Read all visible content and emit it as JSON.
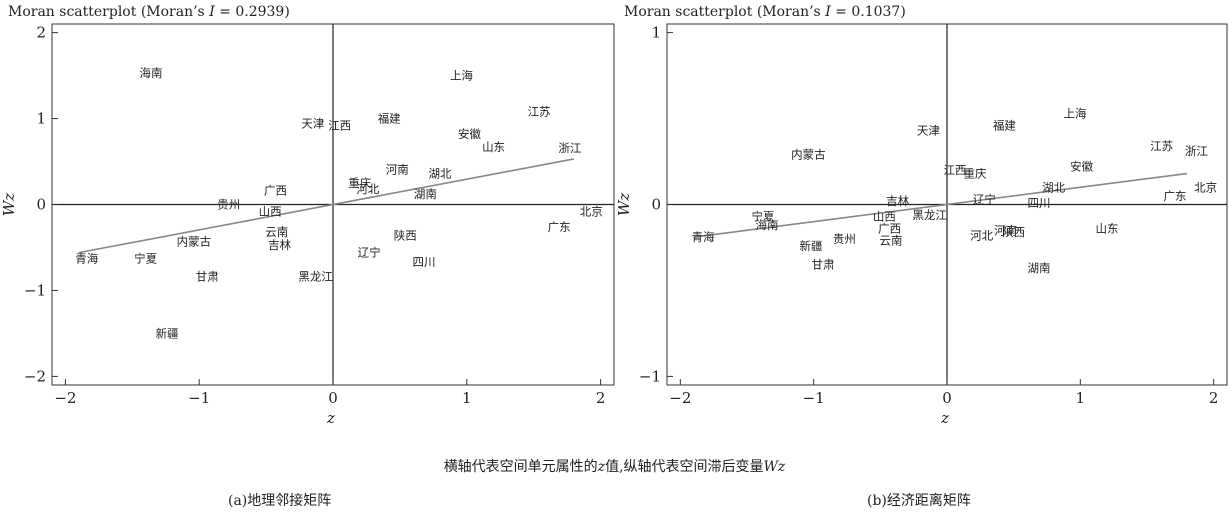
{
  "chart_data": [
    {
      "type": "scatter",
      "title_prefix": "Moran scatterplot (Moran’s ",
      "title_italic": "I",
      "title_suffix": " = 0.2939)",
      "xlabel": "z",
      "ylabel": "Wz",
      "xlim": [
        -2.1,
        2.1
      ],
      "ylim": [
        -2.1,
        2.1
      ],
      "xticks": [
        -2,
        -1,
        0,
        1,
        2
      ],
      "yticks": [
        -2,
        -1,
        0,
        1,
        2
      ],
      "grid": false,
      "fit_line": {
        "x": [
          -1.9,
          1.8
        ],
        "y": [
          -0.56,
          0.53
        ]
      },
      "points": [
        {
          "label": "海南",
          "x": -1.36,
          "y": 1.53
        },
        {
          "label": "上海",
          "x": 0.96,
          "y": 1.5
        },
        {
          "label": "江苏",
          "x": 1.54,
          "y": 1.08
        },
        {
          "label": "天津",
          "x": -0.15,
          "y": 0.94
        },
        {
          "label": "江西",
          "x": 0.05,
          "y": 0.92
        },
        {
          "label": "福建",
          "x": 0.42,
          "y": 1.0
        },
        {
          "label": "安徽",
          "x": 1.02,
          "y": 0.82
        },
        {
          "label": "山东",
          "x": 1.2,
          "y": 0.67
        },
        {
          "label": "浙江",
          "x": 1.77,
          "y": 0.66
        },
        {
          "label": "河南",
          "x": 0.48,
          "y": 0.41
        },
        {
          "label": "湖北",
          "x": 0.8,
          "y": 0.36
        },
        {
          "label": "重庆",
          "x": 0.2,
          "y": 0.25
        },
        {
          "label": "河北",
          "x": 0.26,
          "y": 0.18
        },
        {
          "label": "湖南",
          "x": 0.69,
          "y": 0.12
        },
        {
          "label": "广西",
          "x": -0.43,
          "y": 0.16
        },
        {
          "label": "贵州",
          "x": -0.78,
          "y": 0.0
        },
        {
          "label": "山西",
          "x": -0.47,
          "y": -0.08
        },
        {
          "label": "北京",
          "x": 1.93,
          "y": -0.08
        },
        {
          "label": "广东",
          "x": 1.69,
          "y": -0.26
        },
        {
          "label": "内蒙古",
          "x": -1.04,
          "y": -0.43
        },
        {
          "label": "云南",
          "x": -0.42,
          "y": -0.32
        },
        {
          "label": "吉林",
          "x": -0.4,
          "y": -0.47
        },
        {
          "label": "陕西",
          "x": 0.54,
          "y": -0.36
        },
        {
          "label": "辽宁",
          "x": 0.27,
          "y": -0.56
        },
        {
          "label": "四川",
          "x": 0.68,
          "y": -0.67
        },
        {
          "label": "青海",
          "x": -1.84,
          "y": -0.63
        },
        {
          "label": "宁夏",
          "x": -1.4,
          "y": -0.63
        },
        {
          "label": "甘肃",
          "x": -0.94,
          "y": -0.84
        },
        {
          "label": "黑龙江",
          "x": -0.13,
          "y": -0.84
        },
        {
          "label": "新疆",
          "x": -1.24,
          "y": -1.5
        }
      ]
    },
    {
      "type": "scatter",
      "title_prefix": "Moran scatterplot (Moran’s ",
      "title_italic": "I",
      "title_suffix": "  = 0.1037)",
      "xlabel": "z",
      "ylabel": "Wz",
      "xlim": [
        -2.1,
        2.1
      ],
      "ylim": [
        -1.05,
        1.05
      ],
      "xticks": [
        -2,
        -1,
        0,
        1,
        2
      ],
      "yticks": [
        -1,
        0,
        1
      ],
      "grid": false,
      "fit_line": {
        "x": [
          -1.9,
          1.8
        ],
        "y": [
          -0.19,
          0.18
        ]
      },
      "points": [
        {
          "label": "上海",
          "x": 0.96,
          "y": 0.53
        },
        {
          "label": "福建",
          "x": 0.43,
          "y": 0.46
        },
        {
          "label": "天津",
          "x": -0.14,
          "y": 0.43
        },
        {
          "label": "江苏",
          "x": 1.61,
          "y": 0.34
        },
        {
          "label": "浙江",
          "x": 1.87,
          "y": 0.31
        },
        {
          "label": "内蒙古",
          "x": -1.04,
          "y": 0.29
        },
        {
          "label": "安徽",
          "x": 1.01,
          "y": 0.22
        },
        {
          "label": "江西",
          "x": 0.06,
          "y": 0.2
        },
        {
          "label": "重庆",
          "x": 0.21,
          "y": 0.18
        },
        {
          "label": "湖北",
          "x": 0.8,
          "y": 0.1
        },
        {
          "label": "北京",
          "x": 1.94,
          "y": 0.1
        },
        {
          "label": "广东",
          "x": 1.71,
          "y": 0.05
        },
        {
          "label": "辽宁",
          "x": 0.28,
          "y": 0.03
        },
        {
          "label": "四川",
          "x": 0.69,
          "y": 0.01
        },
        {
          "label": "吉林",
          "x": -0.37,
          "y": 0.02
        },
        {
          "label": "黑龙江",
          "x": -0.13,
          "y": -0.06
        },
        {
          "label": "山西",
          "x": -0.47,
          "y": -0.07
        },
        {
          "label": "宁夏",
          "x": -1.38,
          "y": -0.07
        },
        {
          "label": "海南",
          "x": -1.35,
          "y": -0.12
        },
        {
          "label": "广西",
          "x": -0.43,
          "y": -0.14
        },
        {
          "label": "青海",
          "x": -1.83,
          "y": -0.19
        },
        {
          "label": "云南",
          "x": -0.42,
          "y": -0.21
        },
        {
          "label": "贵州",
          "x": -0.77,
          "y": -0.2
        },
        {
          "label": "新疆",
          "x": -1.02,
          "y": -0.24
        },
        {
          "label": "河北",
          "x": 0.26,
          "y": -0.18
        },
        {
          "label": "河南",
          "x": 0.44,
          "y": -0.15
        },
        {
          "label": "陕西",
          "x": 0.5,
          "y": -0.16
        },
        {
          "label": "山东",
          "x": 1.2,
          "y": -0.14
        },
        {
          "label": "甘肃",
          "x": -0.93,
          "y": -0.35
        },
        {
          "label": "湖南",
          "x": 0.69,
          "y": -0.37
        }
      ]
    }
  ],
  "caption_prefix": "横轴代表空间单元属性的",
  "caption_z": "z",
  "caption_middle": "值,纵轴代表空间滞后变量",
  "caption_wz": "Wz",
  "subcaption_a": "(a)地理邻接矩阵",
  "subcaption_b": "(b)经济距离矩阵"
}
